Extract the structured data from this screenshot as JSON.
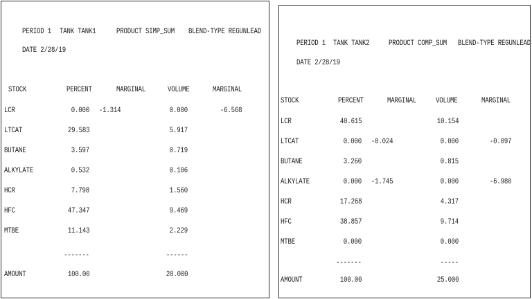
{
  "left": {
    "header": {
      "period": "PERIOD 1",
      "tank": "TANK TANK1",
      "product": "PRODUCT SIMP_SUM",
      "blend": "BLEND-TYPE REGUNLEAD",
      "date": "DATE 2/28/19"
    },
    "columns": [
      "STOCK",
      "PERCENT",
      "MARGINAL",
      "VOLUME",
      "MARGINAL"
    ],
    "rows": [
      {
        "stock": "LCR",
        "percent": "0.000",
        "marginal1": "-1.314",
        "volume": "0.000",
        "marginal2": "-6.568"
      },
      {
        "stock": "LTCAT",
        "percent": "29.583",
        "marginal1": "",
        "volume": "5.917",
        "marginal2": ""
      },
      {
        "stock": "BUTANE",
        "percent": "3.597",
        "marginal1": "",
        "volume": "0.719",
        "marginal2": ""
      },
      {
        "stock": "ALKYLATE",
        "percent": "0.532",
        "marginal1": "",
        "volume": "0.106",
        "marginal2": ""
      },
      {
        "stock": "HCR",
        "percent": "7.798",
        "marginal1": "",
        "volume": "1.560",
        "marginal2": ""
      },
      {
        "stock": "HFC",
        "percent": "47.347",
        "marginal1": "",
        "volume": "9.469",
        "marginal2": ""
      },
      {
        "stock": "MTBE",
        "percent": "11.143",
        "marginal1": "",
        "volume": "2.229",
        "marginal2": ""
      }
    ],
    "separators": {
      "percent": "-------",
      "volume": "------"
    },
    "total": {
      "label": "AMOUNT",
      "percent": "100.00",
      "volume": "20.000"
    }
  },
  "right": {
    "header": {
      "period": "PERIOD 1",
      "tank": "TANK TANK2",
      "product": "PRODUCT COMP_SUM",
      "blend": "BLEND-TYPE REGUNLEAD",
      "date": "DATE 2/28/19"
    },
    "columns": [
      "STOCK",
      "PERCENT",
      "MARGINAL",
      "VOLUME",
      "MARGINAL"
    ],
    "rows": [
      {
        "stock": "LCR",
        "percent": "40.615",
        "marginal1": "",
        "volume": "10.154",
        "marginal2": ""
      },
      {
        "stock": "LTCAT",
        "percent": "0.000",
        "marginal1": "-0.024",
        "volume": "0.000",
        "marginal2": "-0.097"
      },
      {
        "stock": "BUTANE",
        "percent": "3.260",
        "marginal1": "",
        "volume": "0.815",
        "marginal2": ""
      },
      {
        "stock": "ALKYLATE",
        "percent": "0.000",
        "marginal1": "-1.745",
        "volume": "0.000",
        "marginal2": "-6.980"
      },
      {
        "stock": "HCR",
        "percent": "17.268",
        "marginal1": "",
        "volume": "4.317",
        "marginal2": ""
      },
      {
        "stock": "HFC",
        "percent": "38.857",
        "marginal1": "",
        "volume": "9.714",
        "marginal2": ""
      },
      {
        "stock": "MTBE",
        "percent": "0.000",
        "marginal1": "",
        "volume": "0.000",
        "marginal2": ""
      }
    ],
    "separators": {
      "percent": "-------",
      "volume": "-----"
    },
    "total": {
      "label": "AMOUNT",
      "percent": "100.00",
      "volume": "25.000"
    }
  }
}
